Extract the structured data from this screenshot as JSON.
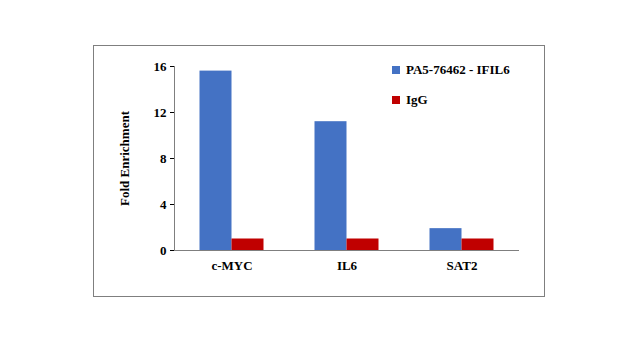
{
  "chart_data": {
    "type": "bar",
    "categories": [
      "c-MYC",
      "IL6",
      "SAT2"
    ],
    "series": [
      {
        "name": "PA5-76462 - IFIL6",
        "color": "#4472C4",
        "values": [
          15.6,
          11.2,
          1.9
        ]
      },
      {
        "name": "IgG",
        "color": "#C00000",
        "values": [
          1,
          1,
          1
        ]
      }
    ],
    "y_label": "Fold Enrichment",
    "ylim": [
      0,
      16
    ],
    "yticks": [
      0,
      4,
      8,
      12,
      16
    ],
    "grid": false,
    "legend": "top-right"
  }
}
